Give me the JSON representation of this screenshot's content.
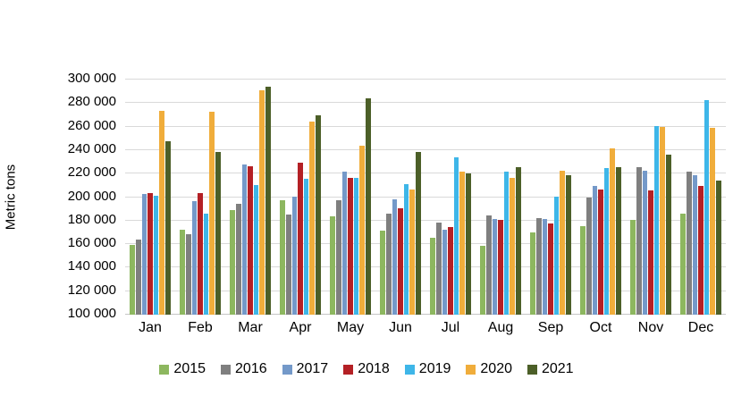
{
  "chart_data": {
    "type": "bar",
    "title": "",
    "xlabel": "",
    "ylabel": "Metric tons",
    "ylim": [
      100000,
      300000
    ],
    "ytick_step": 20000,
    "ytick_labels": [
      "100 000",
      "120 000",
      "140 000",
      "160 000",
      "180 000",
      "200 000",
      "220 000",
      "240 000",
      "260 000",
      "280 000",
      "300 000"
    ],
    "grid": true,
    "legend_position": "bottom",
    "categories": [
      "Jan",
      "Feb",
      "Mar",
      "Apr",
      "May",
      "Jun",
      "Jul",
      "Aug",
      "Sep",
      "Oct",
      "Nov",
      "Dec"
    ],
    "series": [
      {
        "name": "2015",
        "color": "#8db75f",
        "values": [
          159000,
          172000,
          189000,
          197000,
          183000,
          171000,
          165000,
          158000,
          170000,
          175000,
          180000,
          186000
        ]
      },
      {
        "name": "2016",
        "color": "#7f7f7f",
        "values": [
          164000,
          168000,
          194000,
          185000,
          197000,
          186000,
          178000,
          184000,
          182000,
          199000,
          225000,
          221000
        ]
      },
      {
        "name": "2017",
        "color": "#7499c9",
        "values": [
          202000,
          196000,
          227000,
          200000,
          221000,
          198000,
          172000,
          181000,
          181000,
          209000,
          222000,
          218000
        ]
      },
      {
        "name": "2018",
        "color": "#b42025",
        "values": [
          203000,
          203000,
          226000,
          229000,
          216000,
          190000,
          174000,
          180000,
          177000,
          206000,
          205000,
          209000
        ]
      },
      {
        "name": "2019",
        "color": "#3eb6e8",
        "values": [
          201000,
          186000,
          210000,
          215000,
          216000,
          211000,
          233000,
          221000,
          200000,
          224000,
          260000,
          282000
        ]
      },
      {
        "name": "2020",
        "color": "#f0ad3b",
        "values": [
          273000,
          272000,
          290000,
          264000,
          243000,
          206000,
          221000,
          216000,
          222000,
          241000,
          259000,
          258000
        ]
      },
      {
        "name": "2021",
        "color": "#4c5f28",
        "values": [
          247000,
          238000,
          293000,
          269000,
          283000,
          238000,
          220000,
          225000,
          218000,
          225000,
          236000,
          214000
        ]
      }
    ]
  },
  "colors": {
    "gridline": "#d9d9d9",
    "axis_line": "#c6c6c6",
    "text": "#000000",
    "background": "#ffffff"
  }
}
